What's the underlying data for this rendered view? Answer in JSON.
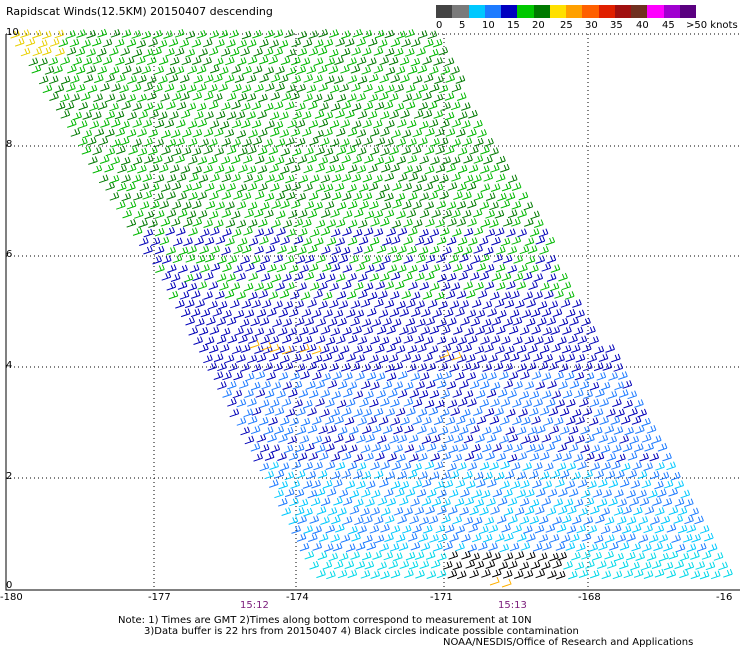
{
  "title": "Rapidscat Winds(12.5KM) 20150407 descending",
  "legend": {
    "labels": [
      "0",
      "5",
      "10",
      "15",
      "20",
      "25",
      "30",
      "35",
      "40",
      "45",
      ">50 knots"
    ],
    "colors": [
      "#444444",
      "#7a7a7a",
      "#00c8ff",
      "#1e7bff",
      "#0000c0",
      "#00c800",
      "#007a00",
      "#ffe000",
      "#ffa000",
      "#ff6000",
      "#e02000",
      "#a01010",
      "#703020",
      "#ff00ff",
      "#a000d0",
      "#5a0080"
    ]
  },
  "map": {
    "lat_labels": [
      "10",
      "8",
      "6",
      "4",
      "2",
      "0"
    ],
    "lon_labels": [
      "-180",
      "-177",
      "-174",
      "-171",
      "-168",
      "-16"
    ],
    "times": [
      "15:12",
      "15:13"
    ]
  },
  "notes": [
    "Note: 1) Times are GMT 2)Times along bottom correspond to measurement at 10N",
    "3)Data buffer is 22 hrs from 20150407 4) Black circles indicate possible contamination",
    "NOAA/NESDIS/Office of Research and Applications"
  ]
}
